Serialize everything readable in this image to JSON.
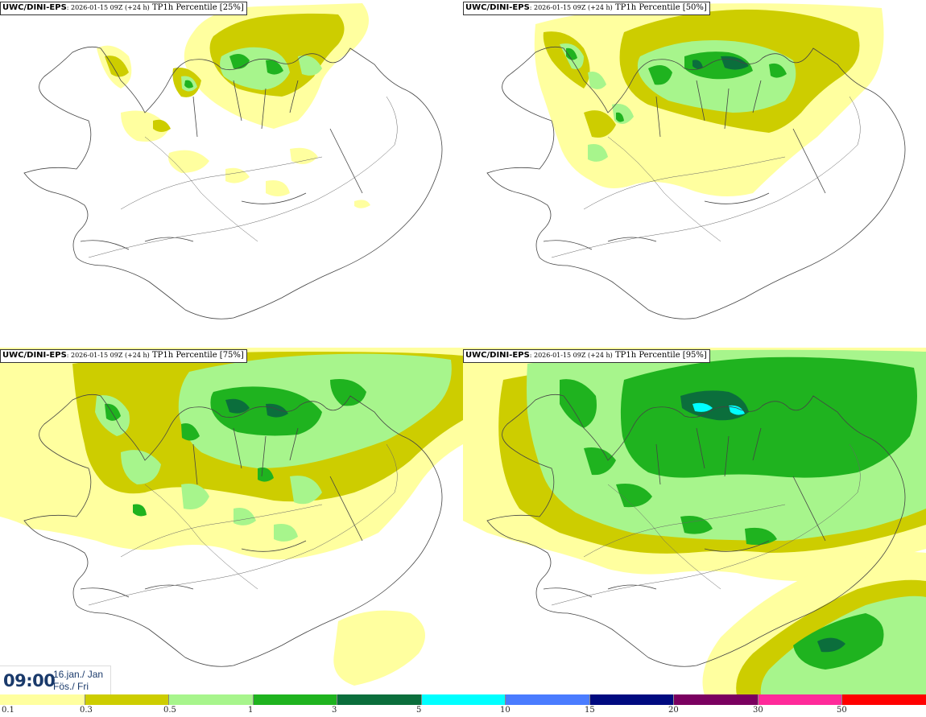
{
  "panels": [
    {
      "id": "p25",
      "model": "UWC/DINI-EPS",
      "run": ": 2026-01-15 09Z (+24 h)",
      "product": "TP1h Percentile [25%]"
    },
    {
      "id": "p50",
      "model": "UWC/DINI-EPS",
      "run": ": 2026-01-15 09Z (+24 h)",
      "product": "TP1h Percentile [50%]"
    },
    {
      "id": "p75",
      "model": "UWC/DINI-EPS",
      "run": ": 2026-01-15 09Z (+24 h)",
      "product": "TP1h Percentile [75%]"
    },
    {
      "id": "p95",
      "model": "UWC/DINI-EPS",
      "run": ": 2026-01-15 09Z (+24 h)",
      "product": "TP1h Percentile [95%]"
    }
  ],
  "valid_time": {
    "time": "09:00",
    "date_line1": "16.jan./ Jan",
    "date_line2": "Fös./ Fri"
  },
  "legend": {
    "colors": [
      "#ffff9f",
      "#cdcd00",
      "#a7f58c",
      "#1fb31f",
      "#0b6e3c",
      "#00ffff",
      "#4a7cff",
      "#000a80",
      "#7a0060",
      "#ff2a9a",
      "#ff0000"
    ],
    "labels": [
      "0.1",
      "0.3",
      "0.5",
      "1",
      "3",
      "5",
      "10",
      "15",
      "20",
      "30",
      "50"
    ]
  }
}
